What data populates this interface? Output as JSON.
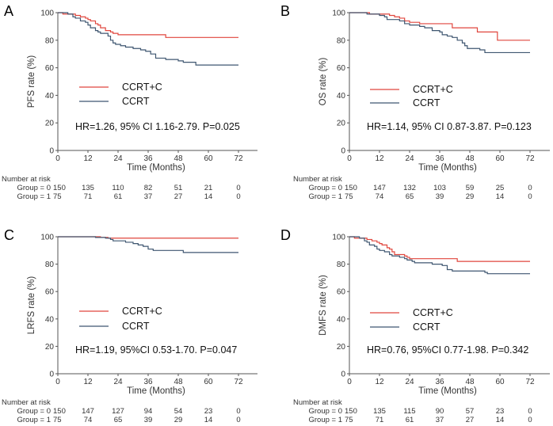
{
  "colors": {
    "CCRT+C": "#e0463d",
    "CCRT": "#3f5670",
    "axis": "#555555"
  },
  "chart_data": [
    {
      "type": "line",
      "panel_label": "A",
      "xlabel": "Time (Months)",
      "ylabel": "PFS rate (%)",
      "xlim": [
        0,
        78
      ],
      "ylim": [
        0,
        100
      ],
      "xticks": [
        0,
        12,
        24,
        36,
        48,
        60,
        72
      ],
      "yticks": [
        0,
        20,
        40,
        60,
        80,
        100
      ],
      "grid": false,
      "legend_placement": "center-left",
      "annotation": "HR=1.26, 95% CI 1.16-2.79. P=0.025",
      "series": [
        {
          "name": "CCRT+C",
          "steps": [
            [
              0,
              100
            ],
            [
              2,
              99
            ],
            [
              7,
              98
            ],
            [
              9,
              97
            ],
            [
              11,
              96
            ],
            [
              12,
              95
            ],
            [
              13,
              94
            ],
            [
              15,
              92
            ],
            [
              16,
              91
            ],
            [
              17,
              89
            ],
            [
              19,
              87
            ],
            [
              21,
              86
            ],
            [
              22,
              85
            ],
            [
              24,
              84
            ],
            [
              43,
              82
            ],
            [
              72,
              82
            ]
          ]
        },
        {
          "name": "CCRT",
          "steps": [
            [
              0,
              100
            ],
            [
              4,
              99
            ],
            [
              6,
              97
            ],
            [
              7,
              96
            ],
            [
              9,
              94
            ],
            [
              11,
              93
            ],
            [
              12,
              91
            ],
            [
              13,
              89
            ],
            [
              15,
              87
            ],
            [
              16,
              86
            ],
            [
              17,
              85
            ],
            [
              20,
              83
            ],
            [
              21,
              80
            ],
            [
              22,
              78
            ],
            [
              23,
              77
            ],
            [
              25,
              76
            ],
            [
              27,
              75
            ],
            [
              30,
              74
            ],
            [
              33,
              73
            ],
            [
              35,
              72
            ],
            [
              37,
              70
            ],
            [
              39,
              67
            ],
            [
              43,
              66
            ],
            [
              48,
              65
            ],
            [
              50,
              64
            ],
            [
              55,
              62
            ],
            [
              72,
              62
            ]
          ]
        }
      ],
      "risk_table": {
        "title": "Number at risk",
        "rows": [
          {
            "label": "Group = 0",
            "values": [
              "150",
              "135",
              "110",
              "82",
              "51",
              "21",
              "0"
            ]
          },
          {
            "label": "Group = 1",
            "values": [
              "75",
              "71",
              "61",
              "37",
              "27",
              "14",
              "0"
            ]
          }
        ]
      }
    },
    {
      "type": "line",
      "panel_label": "B",
      "xlabel": "Time (Months)",
      "ylabel": "OS rate (%)",
      "xlim": [
        0,
        78
      ],
      "ylim": [
        0,
        100
      ],
      "xticks": [
        0,
        12,
        24,
        36,
        48,
        60,
        72
      ],
      "yticks": [
        0,
        20,
        40,
        60,
        80,
        100
      ],
      "grid": false,
      "legend_placement": "center-left",
      "annotation": "HR=1.14, 95% CI 0.87-3.87. P=0.123",
      "series": [
        {
          "name": "CCRT+C",
          "steps": [
            [
              0,
              100
            ],
            [
              8,
              99
            ],
            [
              16,
              98
            ],
            [
              18,
              97
            ],
            [
              20,
              96
            ],
            [
              22,
              94
            ],
            [
              24,
              93
            ],
            [
              28,
              92
            ],
            [
              41,
              89
            ],
            [
              51,
              86
            ],
            [
              59,
              80
            ],
            [
              72,
              80
            ]
          ]
        },
        {
          "name": "CCRT",
          "steps": [
            [
              0,
              100
            ],
            [
              7,
              99
            ],
            [
              12,
              98
            ],
            [
              14,
              97
            ],
            [
              15,
              95
            ],
            [
              20,
              94
            ],
            [
              22,
              92
            ],
            [
              24,
              91
            ],
            [
              28,
              90
            ],
            [
              30,
              89
            ],
            [
              33,
              87
            ],
            [
              36,
              86
            ],
            [
              37,
              84
            ],
            [
              39,
              83
            ],
            [
              41,
              82
            ],
            [
              43,
              80
            ],
            [
              45,
              78
            ],
            [
              46,
              76
            ],
            [
              47,
              74
            ],
            [
              52,
              73
            ],
            [
              54,
              71
            ],
            [
              72,
              71
            ]
          ]
        }
      ],
      "risk_table": {
        "title": "Number at risk",
        "rows": [
          {
            "label": "Group = 0",
            "values": [
              "150",
              "147",
              "132",
              "103",
              "59",
              "25",
              "0"
            ]
          },
          {
            "label": "Group = 1",
            "values": [
              "75",
              "74",
              "65",
              "39",
              "29",
              "14",
              "0"
            ]
          }
        ]
      }
    },
    {
      "type": "line",
      "panel_label": "C",
      "xlabel": "Time (Months)",
      "ylabel": "LRFS rate (%)",
      "xlim": [
        0,
        78
      ],
      "ylim": [
        0,
        100
      ],
      "xticks": [
        0,
        12,
        24,
        36,
        48,
        60,
        72
      ],
      "yticks": [
        0,
        20,
        40,
        60,
        80,
        100
      ],
      "grid": false,
      "legend_placement": "center-left",
      "annotation": "HR=1.19, 95%CI 0.53-1.70. P=0.047",
      "series": [
        {
          "name": "CCRT+C",
          "steps": [
            [
              0,
              100
            ],
            [
              17,
              99.5
            ],
            [
              20,
              99
            ],
            [
              72,
              99
            ]
          ]
        },
        {
          "name": "CCRT",
          "steps": [
            [
              0,
              100
            ],
            [
              15,
              99.5
            ],
            [
              19,
              99
            ],
            [
              21,
              98
            ],
            [
              22,
              97
            ],
            [
              27,
              96
            ],
            [
              30,
              95
            ],
            [
              32,
              94
            ],
            [
              34,
              93
            ],
            [
              36,
              91
            ],
            [
              38,
              90
            ],
            [
              50,
              88.5
            ],
            [
              72,
              88.5
            ]
          ]
        }
      ],
      "risk_table": {
        "title": "Number at risk",
        "rows": [
          {
            "label": "Group = 0",
            "values": [
              "150",
              "147",
              "127",
              "94",
              "54",
              "23",
              "0"
            ]
          },
          {
            "label": "Group = 1",
            "values": [
              "75",
              "74",
              "65",
              "39",
              "29",
              "14",
              "0"
            ]
          }
        ]
      }
    },
    {
      "type": "line",
      "panel_label": "D",
      "xlabel": "Time (Months)",
      "ylabel": "DMFS rate (%)",
      "xlim": [
        0,
        78
      ],
      "ylim": [
        0,
        100
      ],
      "xticks": [
        0,
        12,
        24,
        36,
        48,
        60,
        72
      ],
      "yticks": [
        0,
        20,
        40,
        60,
        80,
        100
      ],
      "grid": false,
      "legend_placement": "center-left",
      "annotation": "HR=0.76, 95%CI 0.77-1.98. P=0.342",
      "series": [
        {
          "name": "CCRT+C",
          "steps": [
            [
              0,
              100
            ],
            [
              2,
              99
            ],
            [
              7,
              98
            ],
            [
              9,
              97
            ],
            [
              11,
              96
            ],
            [
              12,
              95
            ],
            [
              13,
              94
            ],
            [
              15,
              92
            ],
            [
              16,
              91
            ],
            [
              17,
              89
            ],
            [
              18,
              87
            ],
            [
              22,
              86
            ],
            [
              23,
              85
            ],
            [
              24,
              84
            ],
            [
              43,
              82
            ],
            [
              72,
              82
            ]
          ]
        },
        {
          "name": "CCRT",
          "steps": [
            [
              0,
              100
            ],
            [
              4,
              99
            ],
            [
              6,
              97
            ],
            [
              7,
              96
            ],
            [
              8,
              94
            ],
            [
              10,
              93
            ],
            [
              11,
              91
            ],
            [
              12,
              90
            ],
            [
              14,
              89
            ],
            [
              16,
              87
            ],
            [
              17,
              86
            ],
            [
              20,
              85
            ],
            [
              22,
              84
            ],
            [
              23,
              83
            ],
            [
              25,
              82
            ],
            [
              26,
              81
            ],
            [
              33,
              80
            ],
            [
              37,
              79
            ],
            [
              39,
              76
            ],
            [
              41,
              75
            ],
            [
              54,
              74
            ],
            [
              55,
              73
            ],
            [
              72,
              73
            ]
          ]
        }
      ],
      "risk_table": {
        "title": "Number at risk",
        "rows": [
          {
            "label": "Group = 0",
            "values": [
              "150",
              "135",
              "115",
              "90",
              "57",
              "23",
              "0"
            ]
          },
          {
            "label": "Group = 1",
            "values": [
              "75",
              "71",
              "61",
              "37",
              "27",
              "14",
              "0"
            ]
          }
        ]
      }
    }
  ]
}
